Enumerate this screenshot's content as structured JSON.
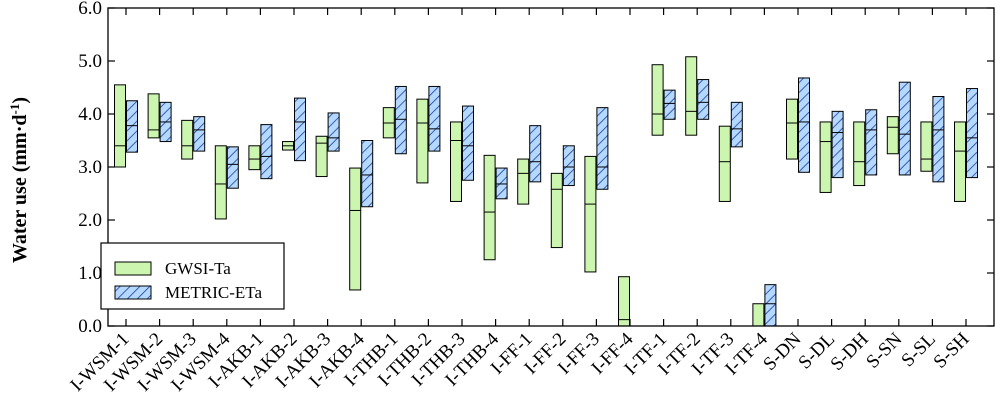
{
  "chart_data": {
    "type": "box",
    "title": "",
    "ylabel": "Water use (mm·d",
    "ylabel_sup": "-1",
    "ylabel_close": ")",
    "ylim": [
      0,
      6
    ],
    "yticks": [
      "0.0",
      "1.0",
      "2.0",
      "3.0",
      "4.0",
      "5.0",
      "6.0"
    ],
    "categories": [
      "I-WSM-1",
      "I-WSM-2",
      "I-WSM-3",
      "I-WSM-4",
      "I-AKB-1",
      "I-AKB-2",
      "I-AKB-3",
      "I-AKB-4",
      "I-THB-1",
      "I-THB-2",
      "I-THB-3",
      "I-THB-4",
      "I-FF-1",
      "I-FF-2",
      "I-FF-3",
      "I-FF-4",
      "I-TF-1",
      "I-TF-2",
      "I-TF-3",
      "I-TF-4",
      "S-DN",
      "S-DL",
      "S-DH",
      "S-SN",
      "S-SL",
      "S-SH"
    ],
    "legend_position": "lower-left",
    "series": [
      {
        "name": "GWSI-Ta",
        "color": "#ccf5b0",
        "min": [
          3.0,
          3.55,
          3.15,
          2.02,
          2.95,
          3.32,
          2.82,
          0.68,
          3.55,
          2.7,
          2.35,
          1.25,
          2.3,
          1.48,
          1.02,
          0.0,
          3.6,
          3.6,
          2.35,
          0.0,
          3.15,
          2.52,
          2.65,
          3.25,
          2.92,
          2.35
        ],
        "median": [
          3.4,
          3.7,
          3.4,
          2.68,
          3.15,
          3.4,
          3.45,
          2.18,
          3.83,
          3.83,
          3.5,
          2.15,
          2.88,
          2.58,
          2.3,
          0.12,
          4.0,
          4.05,
          3.1,
          0.0,
          3.83,
          3.48,
          3.1,
          3.75,
          3.15,
          3.3
        ],
        "max": [
          4.55,
          4.38,
          3.88,
          3.4,
          3.4,
          3.48,
          3.58,
          2.98,
          4.12,
          4.28,
          3.85,
          3.22,
          3.15,
          2.88,
          3.2,
          0.93,
          4.93,
          5.08,
          3.77,
          0.42,
          4.28,
          3.85,
          3.85,
          3.95,
          3.85,
          3.85
        ]
      },
      {
        "name": "METRIC-ETa",
        "color": "#b4d8ff",
        "hatch_color": "#1a3f9e",
        "min": [
          3.28,
          3.48,
          3.3,
          2.6,
          2.78,
          3.12,
          3.3,
          2.25,
          3.25,
          3.3,
          2.75,
          2.4,
          2.72,
          2.65,
          2.58,
          0.0,
          3.9,
          3.9,
          3.38,
          0.0,
          2.9,
          2.8,
          2.85,
          2.85,
          2.72,
          2.8
        ],
        "median": [
          3.78,
          3.85,
          3.7,
          3.05,
          3.2,
          3.85,
          3.55,
          2.85,
          3.9,
          3.72,
          3.4,
          2.68,
          3.1,
          3.0,
          3.0,
          0.0,
          4.2,
          4.22,
          3.72,
          0.42,
          3.85,
          3.65,
          3.7,
          3.62,
          3.7,
          3.55
        ],
        "max": [
          4.25,
          4.22,
          3.95,
          3.38,
          3.8,
          4.3,
          4.02,
          3.5,
          4.52,
          4.52,
          4.15,
          2.98,
          3.78,
          3.4,
          4.12,
          0.0,
          4.45,
          4.65,
          4.22,
          0.78,
          4.68,
          4.05,
          4.08,
          4.6,
          4.33,
          4.48
        ]
      }
    ]
  }
}
